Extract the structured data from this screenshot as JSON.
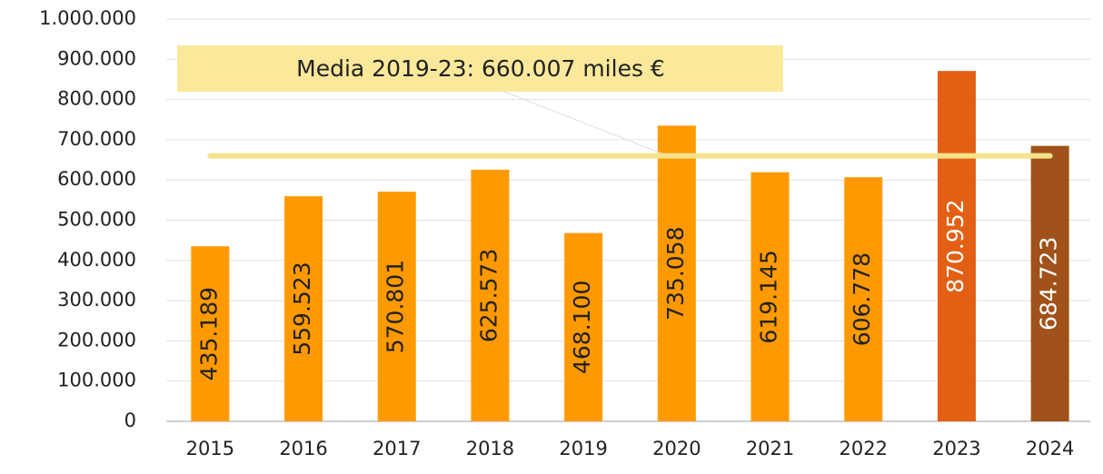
{
  "chart_data": {
    "type": "bar",
    "categories": [
      "2015",
      "2016",
      "2017",
      "2018",
      "2019",
      "2020",
      "2021",
      "2022",
      "2023",
      "2024"
    ],
    "values": [
      435189,
      559523,
      570801,
      625573,
      468100,
      735058,
      619145,
      606778,
      870952,
      684723
    ],
    "value_labels": [
      "435.189",
      "559.523",
      "570.801",
      "625.573",
      "468.100",
      "735.058",
      "619.145",
      "606.778",
      "870.952",
      "684.723"
    ],
    "colors": [
      "#ff9900",
      "#ff9900",
      "#ff9900",
      "#ff9900",
      "#ff9900",
      "#ff9900",
      "#ff9900",
      "#ff9900",
      "#e35f14",
      "#a0521a"
    ],
    "label_colors": [
      "#222222",
      "#222222",
      "#222222",
      "#222222",
      "#222222",
      "#222222",
      "#222222",
      "#222222",
      "#ffffff",
      "#ffffff"
    ],
    "ylim": [
      0,
      1000000
    ],
    "yticks": [
      0,
      {
        "value": 100000,
        "label": "100.000"
      },
      {
        "value": 200000,
        "label": "200.000"
      },
      {
        "value": 300000,
        "label": "300.000"
      },
      {
        "value": 400000,
        "label": "400.000"
      },
      {
        "value": 500000,
        "label": "500.000"
      },
      {
        "value": 600000,
        "label": "600.000"
      },
      {
        "value": 700000,
        "label": "700.000"
      },
      {
        "value": 800000,
        "label": "800.000"
      },
      {
        "value": 900000,
        "label": "900.000"
      },
      {
        "value": 1000000,
        "label": "1.000.000"
      }
    ],
    "grid": true,
    "mean": 660007,
    "mean_color": "#f5e28a",
    "annotation": "Media 2019-23: 660.007 miles €"
  }
}
